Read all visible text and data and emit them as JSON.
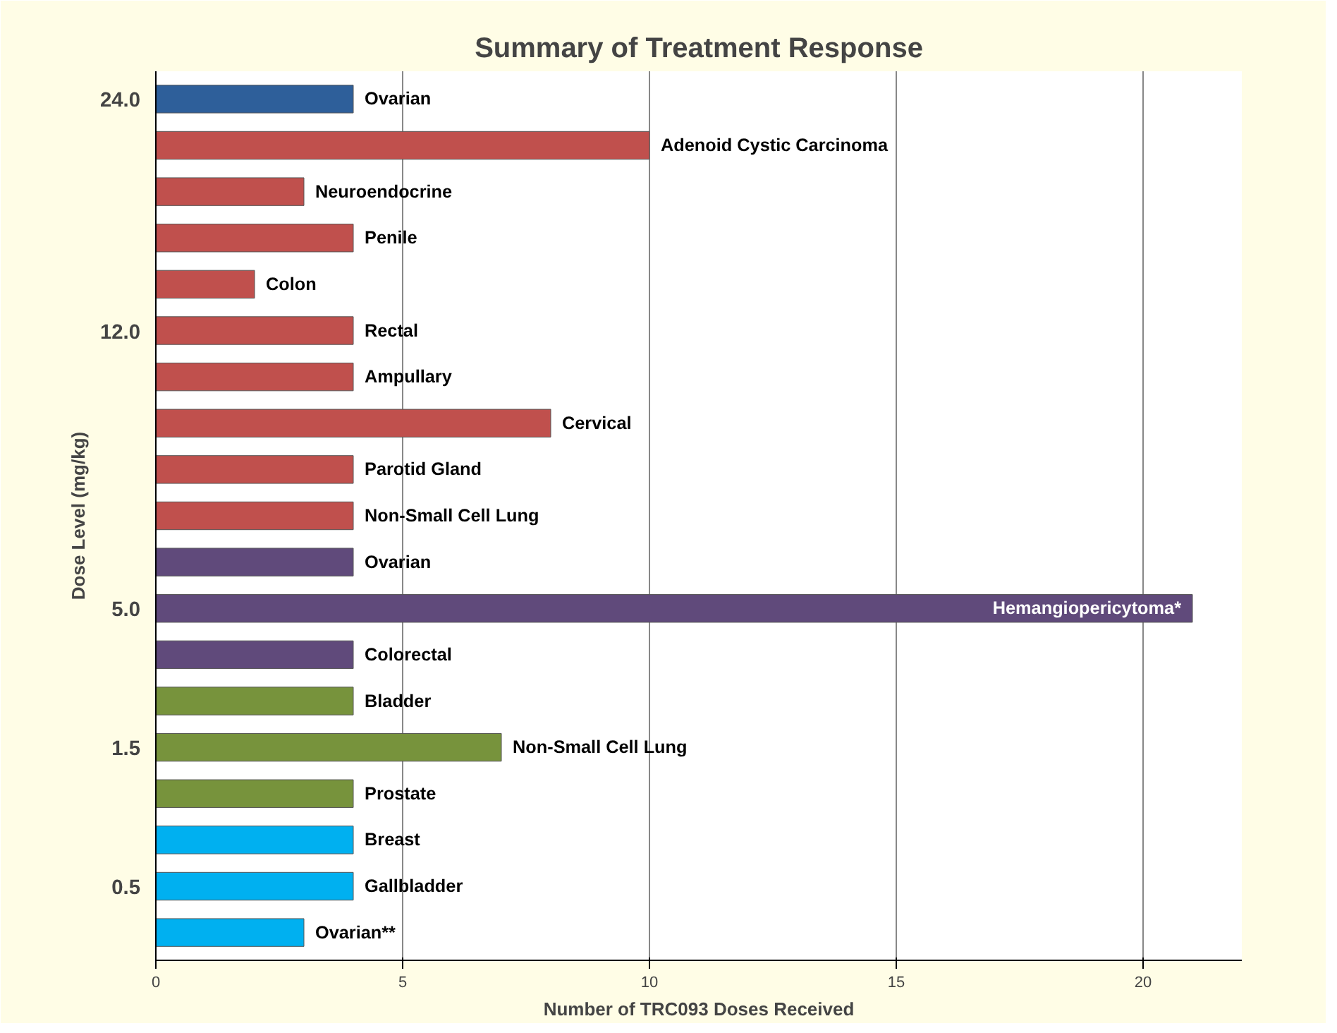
{
  "chart_data": {
    "type": "bar",
    "orientation": "horizontal",
    "title": "Summary of Treatment Response",
    "xlabel": "Number of TRC093 Doses Received",
    "ylabel": "Dose Level (mg/kg)",
    "categories": [
      "Ovarian",
      "Adenoid Cystic Carcinoma",
      "Neuroendocrine",
      "Penile",
      "Colon",
      "Rectal",
      "Ampullary",
      "Cervical",
      "Parotid Gland",
      "Non-Small Cell Lung",
      "Ovarian",
      "Hemangiopericytoma*",
      "Colorectal",
      "Bladder",
      "Non-Small Cell Lung",
      "Prostate",
      "Breast",
      "Gallbladder",
      "Ovarian**"
    ],
    "series": [
      {
        "name": "24.0",
        "color": "#2e5f9a",
        "values": [
          4,
          null,
          null,
          null,
          null,
          null,
          null,
          null,
          null,
          null,
          null,
          null,
          null,
          null,
          null,
          null,
          null,
          null,
          null
        ]
      },
      {
        "name": "12.0",
        "color": "#c0504d",
        "values": [
          null,
          10,
          3,
          4,
          2,
          4,
          4,
          8,
          4,
          4,
          null,
          null,
          null,
          null,
          null,
          null,
          null,
          null,
          null
        ]
      },
      {
        "name": "5.0",
        "color": "#604a7b",
        "values": [
          null,
          null,
          null,
          null,
          null,
          null,
          null,
          null,
          null,
          null,
          4,
          21,
          4,
          null,
          null,
          null,
          null,
          null,
          null
        ]
      },
      {
        "name": "1.5",
        "color": "#77933c",
        "values": [
          null,
          null,
          null,
          null,
          null,
          null,
          null,
          null,
          null,
          null,
          null,
          null,
          null,
          4,
          7,
          4,
          null,
          null,
          null
        ]
      },
      {
        "name": "0.5",
        "color": "#00b0f0",
        "values": [
          null,
          null,
          null,
          null,
          null,
          null,
          null,
          null,
          null,
          null,
          null,
          null,
          null,
          null,
          null,
          null,
          4,
          4,
          3
        ]
      }
    ],
    "xlim": [
      0,
      22
    ],
    "xticks": [
      0,
      5,
      10,
      15,
      20
    ],
    "grid": "x"
  }
}
